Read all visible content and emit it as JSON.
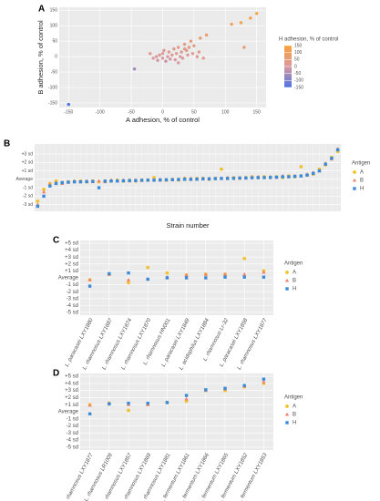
{
  "chart_data": [
    {
      "type": "scatter",
      "panel": "A",
      "xlabel": "A adhesion, % of control",
      "ylabel": "B adhesion, % of control",
      "legend_title": "H adhesion, % of control",
      "x": [
        -150,
        -45,
        -20,
        -15,
        -10,
        -8,
        -5,
        0,
        0,
        2,
        5,
        8,
        10,
        12,
        15,
        18,
        20,
        22,
        25,
        28,
        30,
        32,
        35,
        38,
        40,
        42,
        45,
        48,
        50,
        55,
        58,
        60,
        65,
        70,
        35,
        25,
        110,
        125,
        140,
        150,
        130
      ],
      "y": [
        -155,
        -40,
        10,
        -5,
        0,
        -12,
        5,
        -5,
        10,
        20,
        -15,
        0,
        15,
        -8,
        5,
        25,
        -10,
        10,
        30,
        0,
        15,
        -5,
        40,
        20,
        5,
        30,
        50,
        10,
        35,
        0,
        15,
        60,
        -5,
        70,
        25,
        -20,
        105,
        110,
        125,
        140,
        30
      ],
      "color_values": [
        -150,
        -60,
        20,
        0,
        10,
        -10,
        5,
        0,
        15,
        10,
        -20,
        0,
        20,
        -5,
        10,
        30,
        0,
        15,
        30,
        5,
        20,
        0,
        40,
        25,
        10,
        35,
        50,
        15,
        40,
        20,
        30,
        60,
        30,
        80,
        25,
        0,
        100,
        120,
        130,
        150,
        60
      ],
      "xlim": [
        -165,
        165
      ],
      "ylim": [
        -165,
        160
      ],
      "xticks": [
        -150,
        -100,
        -50,
        0,
        50,
        100,
        150
      ],
      "yticks": [
        -150,
        -100,
        -50,
        0,
        50,
        100,
        150
      ],
      "colorscale": [
        "#4d74e6",
        "#d9999e",
        "#f9a33a"
      ],
      "colorbar_lim": [
        -150,
        150
      ],
      "colorbar_ticks": [
        150,
        100,
        50,
        0,
        -50,
        -100,
        -150
      ],
      "grid": true
    },
    {
      "type": "dot",
      "panel": "B",
      "xlabel": "Strain number",
      "legend_title": "Antigen",
      "ylim": [
        -3.8,
        4.2
      ],
      "yticks": [
        {
          "value": 3,
          "label": "+3 sd"
        },
        {
          "value": 2,
          "label": "+2 sd"
        },
        {
          "value": 1,
          "label": "+1 sd"
        },
        {
          "value": 0,
          "label": "Average"
        },
        {
          "value": -1,
          "label": "-1 sd"
        },
        {
          "value": -2,
          "label": "-2 sd"
        },
        {
          "value": -3,
          "label": "-3 sd"
        }
      ],
      "series": [
        {
          "name": "A",
          "color": "#f2c12e",
          "shape": "circle",
          "values": [
            -2.6,
            -1.2,
            -0.5,
            -0.2,
            -0.4,
            -0.3,
            -0.3,
            -0.2,
            -0.3,
            -0.2,
            -0.3,
            -0.2,
            -0.2,
            -0.1,
            -0.2,
            -0.1,
            -0.2,
            -0.1,
            -0.1,
            0.2,
            -0.1,
            -0.1,
            0,
            -0.1,
            0.1,
            0,
            0.1,
            0.1,
            0,
            0.1,
            1.2,
            0.1,
            0.2,
            0.1,
            0.2,
            0.3,
            0.2,
            0.3,
            0.2,
            0.3,
            0.2,
            0.4,
            0.3,
            1.5,
            0.5,
            0.6,
            1.2,
            1.7,
            2.6,
            3.3
          ]
        },
        {
          "name": "B",
          "color": "#f0826e",
          "shape": "triangle",
          "values": [
            -3.0,
            -1.5,
            -0.6,
            -0.4,
            -0.5,
            -0.3,
            -0.2,
            -0.3,
            -0.2,
            -0.3,
            -0.2,
            -0.3,
            -0.1,
            -0.2,
            -0.1,
            -0.2,
            -0.1,
            -0.1,
            -0.1,
            -0.1,
            0,
            -0.1,
            0,
            0,
            0.1,
            0.1,
            0,
            0.1,
            0.1,
            0.1,
            0.1,
            0.2,
            0.1,
            0.2,
            0.2,
            0.2,
            0.3,
            0.2,
            0.3,
            0.2,
            0.4,
            0.3,
            0.4,
            0.4,
            0.6,
            0.8,
            1.0,
            1.9,
            2.4,
            3.6
          ]
        },
        {
          "name": "H",
          "color": "#3b8bd9",
          "shape": "square",
          "values": [
            -3.2,
            -2.0,
            -0.8,
            -0.5,
            -0.4,
            -0.35,
            -0.3,
            -0.3,
            -0.28,
            -0.25,
            -1.0,
            -0.22,
            -0.2,
            -0.2,
            -0.18,
            -0.15,
            -0.15,
            -0.12,
            -0.1,
            -0.1,
            -0.08,
            -0.05,
            -0.05,
            -0.02,
            0,
            0,
            0.02,
            0.05,
            0.05,
            0.08,
            0.1,
            0.1,
            0.12,
            0.15,
            0.15,
            0.18,
            0.2,
            0.2,
            0.22,
            0.25,
            0.3,
            0.3,
            0.35,
            0.4,
            0.5,
            0.7,
            1.0,
            1.8,
            2.5,
            3.5
          ]
        }
      ],
      "grid": true
    },
    {
      "type": "dot",
      "panel": "C",
      "legend_title": "Antigen",
      "categories": [
        "L. paracasei LXY1880",
        "L. rhamnosus LXY1687",
        "L. rhamnosus LXY1874",
        "L. rhamnosus LXY1870",
        "L. rhamnosus HN001",
        "L. paracasei LXY1849",
        "L. acidophilus LXY1884",
        "L. rhamnosus Lr-32",
        "L. paracasei LXY1858",
        "L. rhamnosus LXY1877"
      ],
      "ylim": [
        -5.4,
        5.4
      ],
      "yticks": [
        {
          "value": 5,
          "label": "+5 sd"
        },
        {
          "value": 4,
          "label": "+4 sd"
        },
        {
          "value": 3,
          "label": "+3 sd"
        },
        {
          "value": 2,
          "label": "+2 sd"
        },
        {
          "value": 1,
          "label": "+1 sd"
        },
        {
          "value": 0,
          "label": "Average"
        },
        {
          "value": -1,
          "label": "-1 sd"
        },
        {
          "value": -2,
          "label": "-2 sd"
        },
        {
          "value": -3,
          "label": "-3 sd"
        },
        {
          "value": -4,
          "label": "-4 sd"
        },
        {
          "value": -5,
          "label": "-5 sd"
        }
      ],
      "series": [
        {
          "name": "A",
          "color": "#f2c12e",
          "shape": "circle",
          "values": [
            -0.3,
            0.5,
            -0.7,
            1.5,
            0.7,
            0.4,
            0.5,
            0.5,
            2.8,
            1.0
          ]
        },
        {
          "name": "B",
          "color": "#f0826e",
          "shape": "triangle",
          "values": [
            -0.3,
            0.5,
            -0.3,
            -0.2,
            0.1,
            0.4,
            0.5,
            0.5,
            0.5,
            0.8
          ]
        },
        {
          "name": "H",
          "color": "#3b8bd9",
          "shape": "square",
          "values": [
            -1.2,
            0.6,
            0.7,
            -0.2,
            0.0,
            0.0,
            0.0,
            0.1,
            0.1,
            0.1
          ]
        }
      ],
      "grid": true
    },
    {
      "type": "dot",
      "panel": "D",
      "legend_title": "Antigen",
      "categories": [
        "L. rhamnosus LXY1877",
        "L. rhamnosus LR1009",
        "L. rhamnosus LXY1857",
        "L. rhamnosus LXY1869",
        "L. rhamnosus LXY1881",
        "L. fermentum LXY1861",
        "L. fermentum LXY1866",
        "L. fermentum LXY1865",
        "L. fermentum LXY1852",
        "L. fermentum LXY1853"
      ],
      "ylim": [
        -5.4,
        5.4
      ],
      "yticks": [
        {
          "value": 5,
          "label": "+5 sd"
        },
        {
          "value": 4,
          "label": "+4 sd"
        },
        {
          "value": 3,
          "label": "+3 sd"
        },
        {
          "value": 2,
          "label": "+2 sd"
        },
        {
          "value": 1,
          "label": "+1 sd"
        },
        {
          "value": 0,
          "label": "Average"
        },
        {
          "value": -1,
          "label": "-1 sd"
        },
        {
          "value": -2,
          "label": "-2 sd"
        },
        {
          "value": -3,
          "label": "-3 sd"
        },
        {
          "value": -4,
          "label": "-4 sd"
        },
        {
          "value": -5,
          "label": "-5 sd"
        }
      ],
      "series": [
        {
          "name": "A",
          "color": "#f2c12e",
          "shape": "circle",
          "values": [
            1.0,
            1.2,
            0.2,
            1.0,
            1.3,
            1.5,
            3.0,
            3.0,
            3.5,
            4.0
          ]
        },
        {
          "name": "B",
          "color": "#f0826e",
          "shape": "triangle",
          "values": [
            0.9,
            1.2,
            1.0,
            1.0,
            1.3,
            1.8,
            3.0,
            3.2,
            3.6,
            4.2
          ]
        },
        {
          "name": "H",
          "color": "#3b8bd9",
          "shape": "square",
          "values": [
            -0.3,
            1.1,
            1.2,
            1.2,
            1.3,
            2.3,
            3.1,
            3.3,
            3.7,
            4.6
          ]
        }
      ],
      "grid": true
    }
  ]
}
